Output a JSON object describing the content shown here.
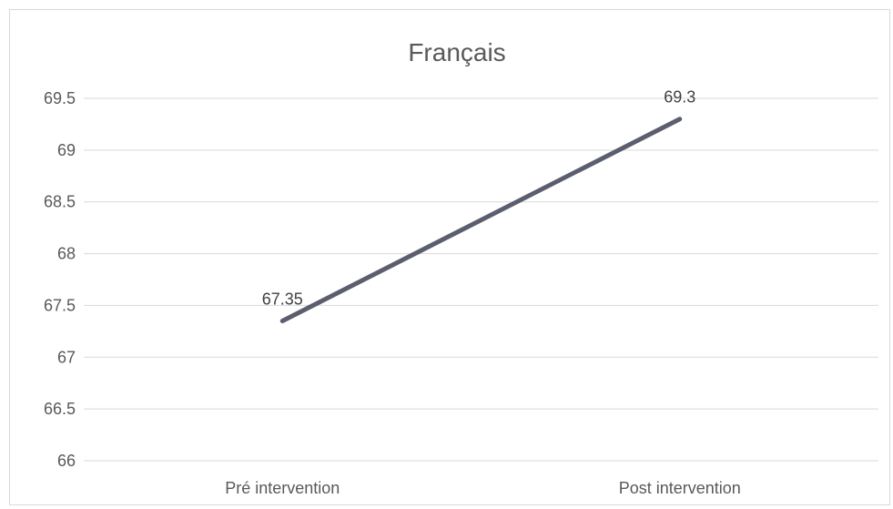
{
  "chart_data": {
    "type": "line",
    "title": "Français",
    "categories": [
      "Pré intervention",
      "Post intervention"
    ],
    "series": [
      {
        "values": [
          67.35,
          69.3
        ],
        "data_labels": [
          "67.35",
          "69.3"
        ]
      }
    ],
    "yticks": [
      "66",
      "66.5",
      "67",
      "67.5",
      "68",
      "68.5",
      "69",
      "69.5"
    ],
    "ylim": [
      66,
      69.5
    ],
    "xlabel": "",
    "ylabel": "",
    "grid": true,
    "legend": "none",
    "colors": {
      "line": "#5b5e6e",
      "grid": "#d9d9d9",
      "text": "#595959"
    }
  }
}
